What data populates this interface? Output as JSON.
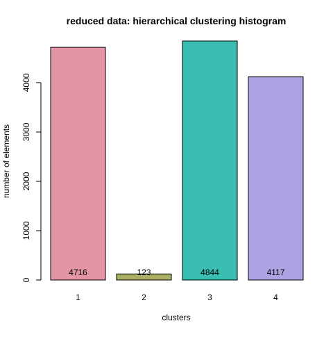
{
  "chart_data": {
    "type": "bar",
    "title": "reduced data: hierarchical clustering histogram",
    "xlabel": "clusters",
    "ylabel": "number of elements",
    "categories": [
      "1",
      "2",
      "3",
      "4"
    ],
    "values": [
      4716,
      123,
      4844,
      4117
    ],
    "data_labels": [
      "4716",
      "123",
      "4844",
      "4117"
    ],
    "colors": [
      "#E495A5",
      "#ABB065",
      "#39BEB1",
      "#ACA4E2"
    ],
    "ylim": [
      0,
      4844
    ],
    "y_ticks": [
      0,
      1000,
      2000,
      3000,
      4000
    ],
    "y_tick_labels": [
      "0",
      "1000",
      "2000",
      "3000",
      "4000"
    ],
    "grid": false,
    "legend": "none"
  }
}
